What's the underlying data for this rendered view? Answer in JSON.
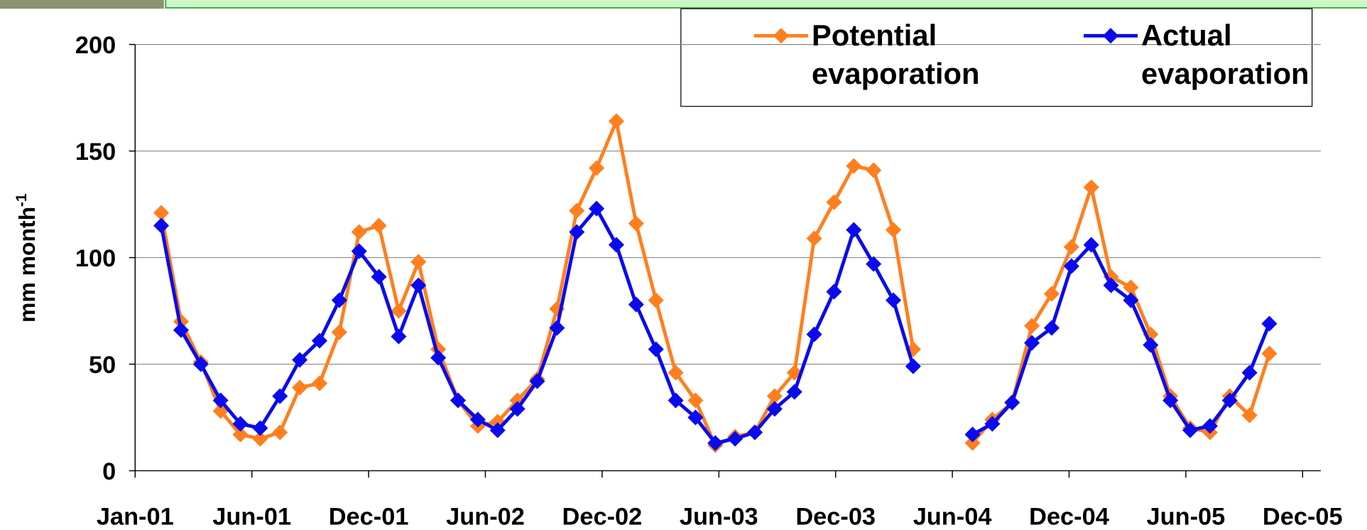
{
  "chart_data": {
    "type": "line",
    "ylabel": "mm month",
    "ylabel_superscript": "-1",
    "x": [
      0,
      1,
      2,
      3,
      4,
      5,
      6,
      7,
      8,
      9,
      10,
      11,
      12,
      13,
      14,
      15,
      16,
      17,
      18,
      19,
      20,
      21,
      22,
      23,
      24,
      25,
      26,
      27,
      28,
      29,
      30,
      31,
      32,
      33,
      34,
      35,
      36,
      37,
      38,
      39,
      40,
      41,
      42,
      43,
      44,
      45,
      46,
      47,
      48,
      49,
      50,
      51,
      52,
      53,
      54,
      55,
      56
    ],
    "series": [
      {
        "name": "Potential evaporation",
        "color": "#ff7f1e",
        "values": [
          121,
          70,
          51,
          28,
          17,
          15,
          18,
          39,
          41,
          65,
          112,
          115,
          75,
          98,
          57,
          33,
          21,
          23,
          33,
          43,
          76,
          122,
          142,
          164,
          116,
          80,
          46,
          33,
          12,
          16,
          18,
          35,
          46,
          109,
          126,
          143,
          141,
          113,
          57,
          null,
          null,
          13,
          24,
          32,
          68,
          83,
          105,
          133,
          91,
          86,
          64,
          35,
          20,
          18,
          35,
          26,
          55
        ]
      },
      {
        "name": "Actual evaporation",
        "color": "#0a0aee",
        "values": [
          115,
          66,
          50,
          33,
          22,
          20,
          35,
          52,
          61,
          80,
          103,
          91,
          63,
          87,
          53,
          33,
          24,
          19,
          29,
          42,
          67,
          112,
          123,
          106,
          78,
          57,
          33,
          25,
          13,
          15,
          18,
          29,
          37,
          64,
          84,
          113,
          97,
          80,
          49,
          null,
          null,
          17,
          22,
          32,
          60,
          67,
          96,
          106,
          87,
          80,
          59,
          33,
          19,
          21,
          33,
          46,
          69
        ]
      }
    ],
    "xlim": [
      -1.32,
      58.6
    ],
    "xticks": [
      {
        "value": -1.32,
        "label": "Jan-01"
      },
      {
        "value": 4.58,
        "label": "Jun-01"
      },
      {
        "value": 10.48,
        "label": "Dec-01"
      },
      {
        "value": 16.38,
        "label": "Jun-02"
      },
      {
        "value": 22.28,
        "label": "Dec-02"
      },
      {
        "value": 28.18,
        "label": "Jun-03"
      },
      {
        "value": 34.08,
        "label": "Dec-03"
      },
      {
        "value": 39.98,
        "label": "Jun-04"
      },
      {
        "value": 45.88,
        "label": "Dec-04"
      },
      {
        "value": 51.78,
        "label": "Jun-05"
      },
      {
        "value": 57.68,
        "label": "Dec-05"
      }
    ],
    "ylim": [
      0,
      200
    ],
    "yticks": [
      0,
      50,
      100,
      150,
      200
    ],
    "grid": true,
    "legend": "top-right"
  }
}
